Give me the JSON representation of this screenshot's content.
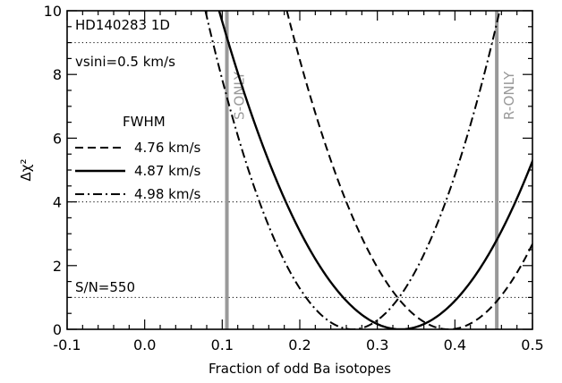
{
  "chart_data": {
    "type": "line",
    "xlabel": "Fraction of odd Ba isotopes",
    "ylabel": "Δχ²",
    "xlim": [
      -0.1,
      0.5
    ],
    "ylim": [
      0,
      10
    ],
    "x_ticks": [
      "-0.1",
      "0.0",
      "0.1",
      "0.2",
      "0.3",
      "0.4",
      "0.5"
    ],
    "y_ticks": [
      "0",
      "2",
      "4",
      "6",
      "8",
      "10"
    ],
    "annotations": {
      "star": "HD140283 1D",
      "vsini": "vsini=0.5 km/s",
      "snr": "S/N=550"
    },
    "legend_title": "FWHM",
    "series": [
      {
        "name": "4.76 km/s",
        "style": "dashed",
        "min_x": 0.392,
        "width": 0.066
      },
      {
        "name": "4.87 km/s",
        "style": "solid",
        "min_x": 0.33,
        "width": 0.074
      },
      {
        "name": "4.98 km/s",
        "style": "dashdot",
        "min_x": 0.268,
        "width": 0.06
      }
    ],
    "horizontal_lines": [
      1,
      4,
      9
    ],
    "vertical_lines": [
      {
        "x": 0.106,
        "label": "S-ONLY"
      },
      {
        "x": 0.454,
        "label": "R-ONLY"
      }
    ],
    "colors": {
      "vertical_line": "#999999",
      "curves": "#000000"
    }
  }
}
